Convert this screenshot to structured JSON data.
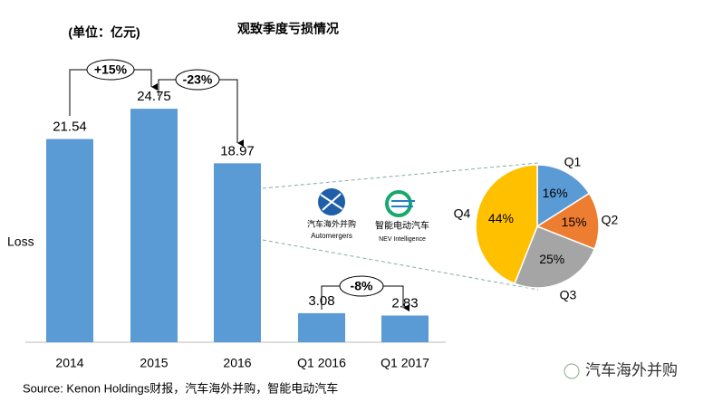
{
  "chart_data": [
    {
      "type": "bar",
      "title": "观致季度亏损情况",
      "subtitle": "(单位：亿元)",
      "y_label": "Loss",
      "categories": [
        "2014",
        "2015",
        "2016",
        "Q1 2016",
        "Q1 2017"
      ],
      "values": [
        21.54,
        24.75,
        18.97,
        3.08,
        2.83
      ],
      "color": "#5b9bd5",
      "annotations": [
        "+15%",
        "-23%",
        "-8%"
      ]
    },
    {
      "type": "pie",
      "categories": [
        "Q1",
        "Q2",
        "Q3",
        "Q4"
      ],
      "values": [
        16,
        15,
        25,
        44
      ],
      "value_labels": [
        "16%",
        "15%",
        "25%",
        "44%"
      ],
      "colors": [
        "#5b9bd5",
        "#ed7d31",
        "#a5a5a5",
        "#ffc000"
      ]
    }
  ],
  "logos": [
    {
      "name": "汽车海外并购",
      "english": "Automergers"
    },
    {
      "name": "智能电动汽车",
      "english": "NEV Intelligence"
    }
  ],
  "source": "Source: Kenon Holdings财报，汽车海外并购，智能电动汽车",
  "watermark": "汽车海外并购"
}
